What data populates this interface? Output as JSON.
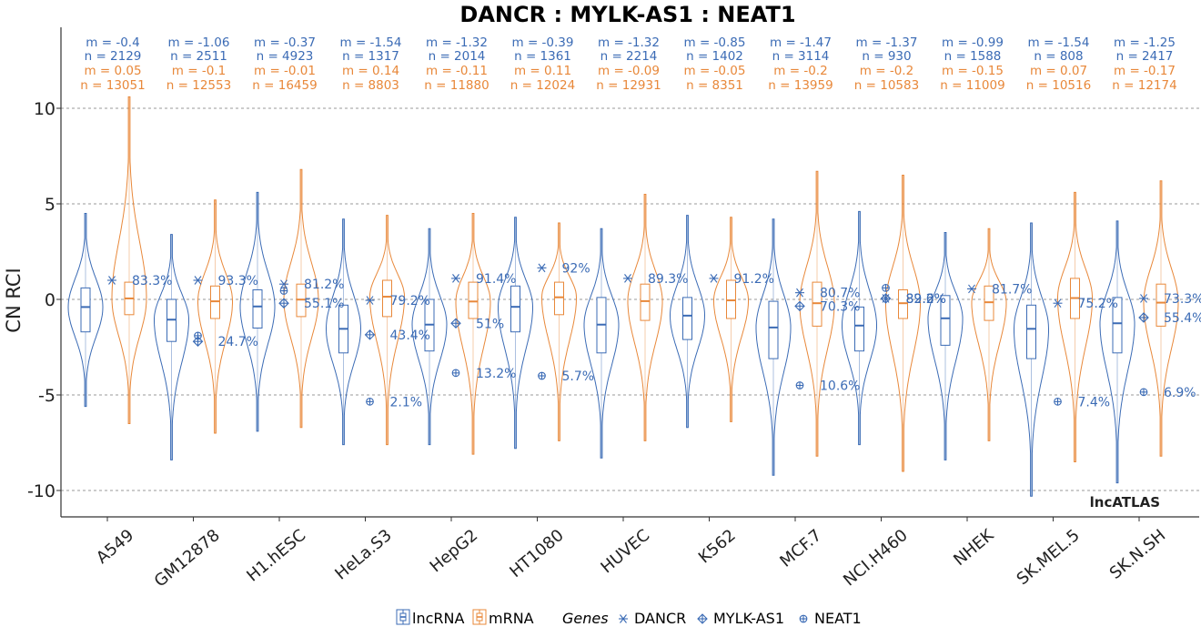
{
  "chart_data": {
    "type": "violin",
    "title": "DANCR : MYLK-AS1 : NEAT1",
    "ylabel": "CN RCI",
    "xlabel": "",
    "ylim": [
      -11,
      14
    ],
    "yticks": [
      10,
      5,
      0,
      -5,
      -10
    ],
    "grid": "horizontal dashed",
    "watermark": "lncATLAS",
    "colors": {
      "lncRNA": "#3B6BB5",
      "mRNA": "#E8883A"
    },
    "categories": [
      "A549",
      "GM12878",
      "H1.hESC",
      "HeLa.S3",
      "HepG2",
      "HT1080",
      "HUVEC",
      "K562",
      "MCF.7",
      "NCI.H460",
      "NHEK",
      "SK.MEL.5",
      "SK.N.SH"
    ],
    "series": [
      {
        "name": "lncRNA",
        "m": [
          "-0.4",
          "-1.06",
          "-0.37",
          "-1.54",
          "-1.32",
          "-0.39",
          "-1.32",
          "-0.85",
          "-1.47",
          "-1.37",
          "-0.99",
          "-1.54",
          "-1.25"
        ],
        "n": [
          "2129",
          "2511",
          "4923",
          "1317",
          "2014",
          "1361",
          "2214",
          "1402",
          "3114",
          "930",
          "1588",
          "808",
          "2417"
        ],
        "median": [
          -0.4,
          -1.06,
          -0.37,
          -1.54,
          -1.32,
          -0.39,
          -1.32,
          -0.85,
          -1.47,
          -1.37,
          -0.99,
          -1.54,
          -1.25
        ],
        "q1": [
          -1.7,
          -2.2,
          -1.5,
          -2.8,
          -2.7,
          -1.7,
          -2.8,
          -2.1,
          -3.1,
          -2.7,
          -2.4,
          -3.1,
          -2.8
        ],
        "q3": [
          0.6,
          0.0,
          0.5,
          -0.3,
          0.0,
          0.7,
          0.1,
          0.1,
          -0.1,
          -0.4,
          0.2,
          -0.3,
          0.1
        ],
        "min": [
          -5.6,
          -8.4,
          -6.9,
          -7.6,
          -7.6,
          -7.8,
          -8.3,
          -6.7,
          -9.2,
          -7.6,
          -8.4,
          -10.3,
          -9.6
        ],
        "max": [
          4.5,
          3.4,
          5.6,
          4.2,
          3.7,
          4.3,
          3.7,
          4.4,
          4.2,
          4.6,
          3.5,
          4.0,
          4.1
        ]
      },
      {
        "name": "mRNA",
        "m": [
          "0.05",
          "-0.1",
          "-0.01",
          "0.14",
          "-0.11",
          "0.11",
          "-0.09",
          "-0.05",
          "-0.2",
          "-0.2",
          "-0.15",
          "0.07",
          "-0.17"
        ],
        "n": [
          "13051",
          "12553",
          "16459",
          "8803",
          "11880",
          "12024",
          "12931",
          "8351",
          "13959",
          "10583",
          "11009",
          "10516",
          "12174"
        ],
        "median": [
          0.05,
          -0.1,
          -0.01,
          0.14,
          -0.11,
          0.11,
          -0.09,
          -0.05,
          -0.2,
          -0.2,
          -0.15,
          0.07,
          -0.17
        ],
        "q1": [
          -0.8,
          -1.0,
          -0.9,
          -0.9,
          -1.0,
          -0.8,
          -1.1,
          -1.0,
          -1.4,
          -1.0,
          -1.1,
          -1.0,
          -1.4
        ],
        "q3": [
          0.9,
          0.7,
          0.8,
          1.0,
          0.9,
          0.9,
          0.8,
          1.0,
          0.9,
          0.5,
          0.7,
          1.1,
          0.8
        ],
        "min": [
          -6.5,
          -7.0,
          -6.7,
          -7.6,
          -8.1,
          -7.4,
          -7.4,
          -6.4,
          -8.2,
          -9.0,
          -7.4,
          -8.5,
          -8.2
        ],
        "max": [
          10.6,
          5.2,
          6.8,
          4.4,
          4.5,
          4.0,
          5.5,
          4.3,
          6.7,
          6.5,
          3.7,
          5.6,
          6.2
        ]
      }
    ],
    "genes": [
      {
        "name": "DANCR",
        "symbol": "asterisk",
        "values": [
          1.0,
          1.0,
          0.8,
          -0.05,
          1.1,
          1.65,
          1.1,
          1.1,
          0.35,
          0.05,
          0.55,
          -0.2,
          0.05
        ],
        "labels": [
          "83.3%",
          "93.3%",
          "81.2%",
          "79.2%",
          "91.4%",
          "92%",
          "89.3%",
          "91.2%",
          "80.7%",
          "89.6%",
          "81.7%",
          "75.2%",
          "73.3%"
        ]
      },
      {
        "name": "MYLK-AS1",
        "symbol": "diamond-plus",
        "values": [
          null,
          -2.2,
          -0.2,
          -1.85,
          -1.25,
          null,
          null,
          null,
          -0.35,
          0.05,
          null,
          null,
          -0.95
        ],
        "labels": [
          null,
          "24.7%",
          "55.1%",
          "43.4%",
          "51%",
          null,
          null,
          null,
          "70.3%",
          "82.2%",
          null,
          null,
          "55.4%"
        ]
      },
      {
        "name": "NEAT1",
        "symbol": "circle-plus",
        "values": [
          null,
          -1.9,
          0.45,
          -5.35,
          -3.85,
          -4.0,
          null,
          null,
          -4.5,
          0.6,
          null,
          -5.35,
          -4.85
        ],
        "labels": [
          null,
          null,
          null,
          "2.1%",
          "13.2%",
          "5.7%",
          null,
          null,
          "10.6%",
          null,
          null,
          "7.4%",
          "6.9%"
        ]
      }
    ],
    "legend": {
      "placement": "bottom",
      "groups_title": "",
      "groups": [
        "lncRNA",
        "mRNA"
      ],
      "genes_title": "Genes",
      "genes": [
        "DANCR",
        "MYLK-AS1",
        "NEAT1"
      ]
    }
  }
}
